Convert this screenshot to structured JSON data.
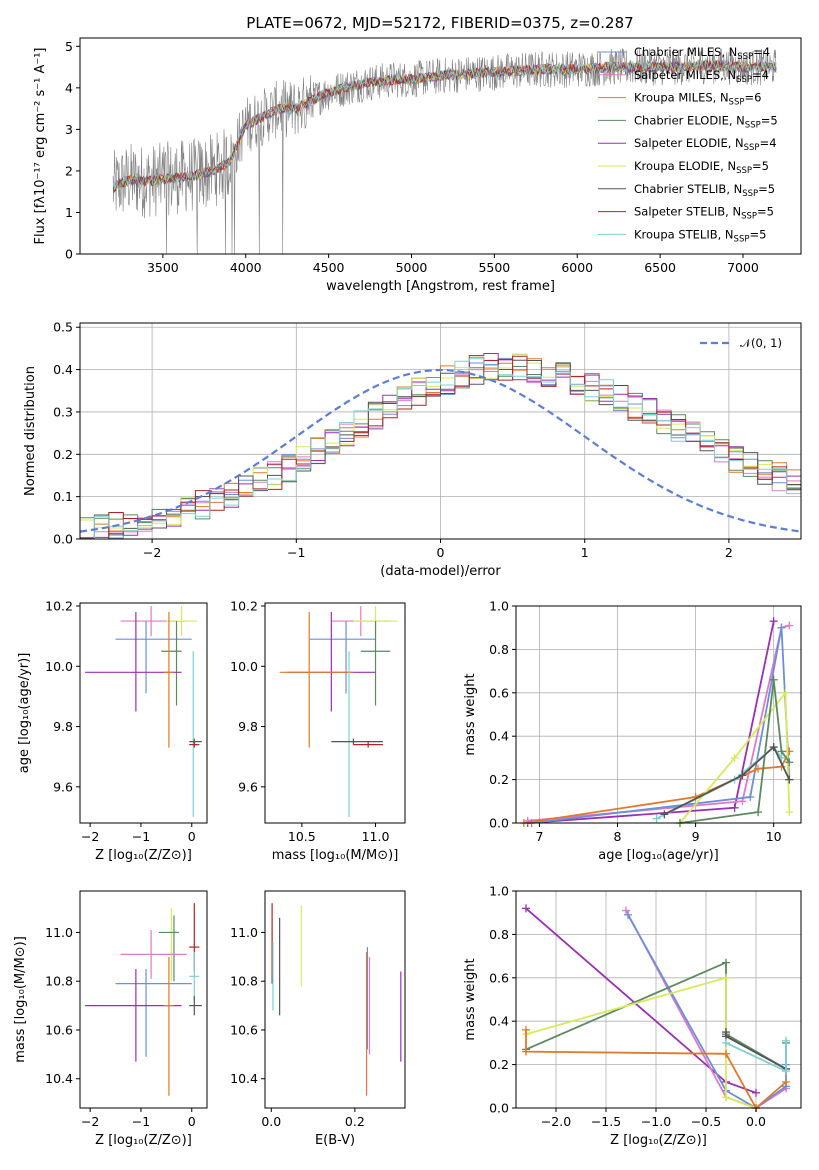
{
  "figure": {
    "title": "PLATE=0672, MJD=52172, FIBERID=0375, z=0.287"
  },
  "colors": {
    "chabrier_miles": "#6b8fdc",
    "salpeter_miles": "#e07ac6",
    "kroupa_miles": "#e07a2a",
    "chabrier_elodie": "#5a8a5e",
    "salpeter_elodie": "#9a2fb6",
    "kroupa_elodie": "#d6ea5a",
    "chabrier_stelib": "#555555",
    "salpeter_stelib": "#b22222",
    "kroupa_stelib": "#7fd0d0",
    "normal_curve": "#5b7fd6",
    "observed": "#808080"
  },
  "chart_data": [
    {
      "id": "spectrum",
      "type": "line",
      "title": "PLATE=0672, MJD=52172, FIBERID=0375, z=0.287",
      "xlabel": "wavelength [Angstrom, rest frame]",
      "ylabel": "Flux [fλ10⁻¹⁷ erg cm⁻² s⁻¹ A⁻¹]",
      "xlim": [
        3000,
        7350
      ],
      "ylim": [
        0,
        5.2
      ],
      "xticks": [
        3500,
        4000,
        4500,
        5000,
        5500,
        6000,
        6500,
        7000
      ],
      "yticks": [
        0,
        1,
        2,
        3,
        4,
        5
      ],
      "legend_position": "top-right",
      "grid": false,
      "model_continuum": {
        "x": [
          3200,
          3300,
          3400,
          3500,
          3600,
          3700,
          3800,
          3900,
          4000,
          4100,
          4200,
          4300,
          4400,
          4500,
          4600,
          4700,
          4800,
          4900,
          5000,
          5200,
          5400,
          5600,
          5800,
          6000,
          6200,
          6400,
          6600,
          6800,
          7000,
          7200
        ],
        "y": [
          1.6,
          1.8,
          1.75,
          1.8,
          1.85,
          1.9,
          2.0,
          2.2,
          3.1,
          3.3,
          3.5,
          3.5,
          3.7,
          3.9,
          4.0,
          4.1,
          4.15,
          4.2,
          4.2,
          4.3,
          4.35,
          4.4,
          4.45,
          4.45,
          4.5,
          4.5,
          4.5,
          4.55,
          4.5,
          4.5
        ]
      },
      "series": [
        {
          "name": "Chabrier MILES, N_SSP=4",
          "label_main": "Chabrier MILES, N",
          "label_sub": "SSP",
          "label_tail": "=4",
          "color_key": "chabrier_miles"
        },
        {
          "name": "Salpeter MILES, N_SSP=4",
          "label_main": "Salpeter MILES, N",
          "label_sub": "SSP",
          "label_tail": "=4",
          "color_key": "salpeter_miles"
        },
        {
          "name": "Kroupa MILES, N_SSP=6",
          "label_main": "Kroupa MILES, N",
          "label_sub": "SSP",
          "label_tail": "=6",
          "color_key": "kroupa_miles"
        },
        {
          "name": "Chabrier ELODIE, N_SSP=5",
          "label_main": "Chabrier ELODIE, N",
          "label_sub": "SSP",
          "label_tail": "=5",
          "color_key": "chabrier_elodie"
        },
        {
          "name": "Salpeter ELODIE, N_SSP=4",
          "label_main": "Salpeter ELODIE, N",
          "label_sub": "SSP",
          "label_tail": "=4",
          "color_key": "salpeter_elodie"
        },
        {
          "name": "Kroupa ELODIE, N_SSP=5",
          "label_main": "Kroupa ELODIE, N",
          "label_sub": "SSP",
          "label_tail": "=5",
          "color_key": "kroupa_elodie"
        },
        {
          "name": "Chabrier STELIB, N_SSP=5",
          "label_main": "Chabrier STELIB, N",
          "label_sub": "SSP",
          "label_tail": "=5",
          "color_key": "chabrier_stelib"
        },
        {
          "name": "Salpeter STELIB, N_SSP=5",
          "label_main": "Salpeter STELIB, N",
          "label_sub": "SSP",
          "label_tail": "=5",
          "color_key": "salpeter_stelib"
        },
        {
          "name": "Kroupa STELIB, N_SSP=5",
          "label_main": "Kroupa STELIB, N",
          "label_sub": "SSP",
          "label_tail": "=5",
          "color_key": "kroupa_stelib"
        }
      ]
    },
    {
      "id": "residuals",
      "type": "line",
      "xlabel": "(data-model)/error",
      "ylabel": "Normed distribution",
      "xlim": [
        -2.5,
        2.5
      ],
      "ylim": [
        0,
        0.51
      ],
      "xticks": [
        -2,
        -1,
        0,
        1,
        2
      ],
      "yticks": [
        0.0,
        0.1,
        0.2,
        0.3,
        0.4,
        0.5
      ],
      "grid": true,
      "legend_position": "top-right",
      "normal_curve_label": "𝒩(0, 1)",
      "bin_width": 0.1,
      "bin_start": -2.5,
      "reference_histogram": [
        0.018,
        0.022,
        0.028,
        0.035,
        0.04,
        0.05,
        0.06,
        0.07,
        0.08,
        0.09,
        0.105,
        0.12,
        0.135,
        0.15,
        0.17,
        0.19,
        0.21,
        0.23,
        0.25,
        0.27,
        0.29,
        0.31,
        0.33,
        0.345,
        0.36,
        0.375,
        0.39,
        0.4,
        0.405,
        0.41,
        0.405,
        0.4,
        0.395,
        0.385,
        0.375,
        0.36,
        0.345,
        0.33,
        0.315,
        0.3,
        0.28,
        0.26,
        0.245,
        0.225,
        0.21,
        0.19,
        0.175,
        0.16,
        0.145,
        0.13,
        0.115
      ],
      "series_count": 9
    },
    {
      "id": "age_vs_Z",
      "type": "scatter",
      "xlabel": "Z [log₁₀(Z/Z⊙)]",
      "ylabel": "age  [log₁₀(age/yr)]",
      "xlim": [
        -2.2,
        0.3
      ],
      "ylim": [
        9.48,
        10.21
      ],
      "xticks": [
        -2,
        -1,
        0
      ],
      "yticks": [
        9.6,
        9.8,
        10.0,
        10.2
      ],
      "points": [
        {
          "color_key": "salpeter_miles",
          "x": -0.8,
          "xerr": [
            0.6,
            0.7
          ],
          "y": 10.15,
          "yerr": [
            0.05,
            0.05
          ]
        },
        {
          "color_key": "chabrier_miles",
          "x": -0.9,
          "xerr": [
            0.6,
            0.9
          ],
          "y": 10.09,
          "yerr": [
            0.18,
            0.06
          ]
        },
        {
          "color_key": "kroupa_elodie",
          "x": -0.2,
          "xerr": [
            0.3,
            0.3
          ],
          "y": 10.15,
          "yerr": [
            0.05,
            0.05
          ]
        },
        {
          "color_key": "chabrier_elodie",
          "x": -0.3,
          "xerr": [
            0.3,
            0.1
          ],
          "y": 10.05,
          "yerr": [
            0.18,
            0.1
          ]
        },
        {
          "color_key": "salpeter_elodie",
          "x": -1.1,
          "xerr": [
            1.0,
            0.9
          ],
          "y": 9.98,
          "yerr": [
            0.13,
            0.2
          ]
        },
        {
          "color_key": "kroupa_miles",
          "x": -0.45,
          "xerr": [
            0.1,
            0.1
          ],
          "y": 9.98,
          "yerr": [
            0.25,
            0.2
          ]
        },
        {
          "color_key": "kroupa_stelib",
          "x": 0.03,
          "xerr": [
            0.05,
            0.05
          ],
          "y": 9.75,
          "yerr": [
            0.25,
            0.3
          ]
        },
        {
          "color_key": "chabrier_stelib",
          "x": 0.05,
          "xerr": [
            0.1,
            0.15
          ],
          "y": 9.75,
          "yerr": [
            0.01,
            0.01
          ]
        },
        {
          "color_key": "salpeter_stelib",
          "x": 0.05,
          "xerr": [
            0.1,
            0.1
          ],
          "y": 9.74,
          "yerr": [
            0.01,
            0.01
          ]
        }
      ]
    },
    {
      "id": "age_vs_mass",
      "type": "scatter",
      "xlabel": "mass [log₁₀(M/M⊙)]",
      "xlim": [
        10.25,
        11.2
      ],
      "ylim": [
        9.48,
        10.21
      ],
      "xticks": [
        10.5,
        11.0
      ],
      "yticks": [
        9.6,
        9.8,
        10.0,
        10.2
      ],
      "points": [
        {
          "color_key": "salpeter_miles",
          "x": 10.9,
          "xerr": [
            0.2,
            0.2
          ],
          "y": 10.15,
          "yerr": [
            0.05,
            0.05
          ]
        },
        {
          "color_key": "chabrier_miles",
          "x": 10.8,
          "xerr": [
            0.25,
            0.2
          ],
          "y": 10.09,
          "yerr": [
            0.18,
            0.06
          ]
        },
        {
          "color_key": "kroupa_elodie",
          "x": 11.0,
          "xerr": [
            0.15,
            0.15
          ],
          "y": 10.15,
          "yerr": [
            0.05,
            0.05
          ]
        },
        {
          "color_key": "chabrier_elodie",
          "x": 11.0,
          "xerr": [
            0.1,
            0.1
          ],
          "y": 10.05,
          "yerr": [
            0.18,
            0.1
          ]
        },
        {
          "color_key": "salpeter_elodie",
          "x": 10.7,
          "xerr": [
            0.3,
            0.3
          ],
          "y": 9.98,
          "yerr": [
            0.13,
            0.2
          ]
        },
        {
          "color_key": "kroupa_miles",
          "x": 10.55,
          "xerr": [
            0.2,
            0.3
          ],
          "y": 9.98,
          "yerr": [
            0.25,
            0.2
          ]
        },
        {
          "color_key": "kroupa_stelib",
          "x": 10.82,
          "xerr": [
            0.05,
            0.05
          ],
          "y": 9.75,
          "yerr": [
            0.25,
            0.3
          ]
        },
        {
          "color_key": "chabrier_stelib",
          "x": 10.85,
          "xerr": [
            0.15,
            0.2
          ],
          "y": 9.75,
          "yerr": [
            0.01,
            0.01
          ]
        },
        {
          "color_key": "salpeter_stelib",
          "x": 10.95,
          "xerr": [
            0.1,
            0.1
          ],
          "y": 9.74,
          "yerr": [
            0.01,
            0.01
          ]
        }
      ]
    },
    {
      "id": "weight_vs_age",
      "type": "line",
      "xlabel": "age  [log₁₀(age/yr)]",
      "ylabel": "mass weight",
      "xlim": [
        6.7,
        10.35
      ],
      "ylim": [
        0,
        1.0
      ],
      "xticks": [
        7,
        8,
        9,
        10
      ],
      "yticks": [
        0.0,
        0.2,
        0.4,
        0.6,
        0.8,
        1.0
      ],
      "grid": true,
      "series": [
        {
          "color_key": "salpeter_elodie",
          "x": [
            6.85,
            9.5,
            10.0
          ],
          "y": [
            0.0,
            0.07,
            0.93
          ]
        },
        {
          "color_key": "salpeter_miles",
          "x": [
            6.85,
            9.6,
            10.1,
            10.2
          ],
          "y": [
            0.01,
            0.1,
            0.9,
            0.91
          ]
        },
        {
          "color_key": "chabrier_miles",
          "x": [
            6.9,
            9.7,
            10.1,
            10.2
          ],
          "y": [
            0.0,
            0.12,
            0.9,
            0.2
          ]
        },
        {
          "color_key": "kroupa_miles",
          "x": [
            6.8,
            9.0,
            9.8,
            10.1,
            10.2
          ],
          "y": [
            0.0,
            0.12,
            0.25,
            0.26,
            0.33
          ]
        },
        {
          "color_key": "kroupa_elodie",
          "x": [
            8.8,
            9.5,
            10.15,
            10.2
          ],
          "y": [
            0.0,
            0.3,
            0.6,
            0.05
          ]
        },
        {
          "color_key": "chabrier_elodie",
          "x": [
            8.8,
            9.8,
            10.0,
            10.1,
            10.2
          ],
          "y": [
            0.0,
            0.05,
            0.66,
            0.33,
            0.28
          ]
        },
        {
          "color_key": "kroupa_stelib",
          "x": [
            8.5,
            9.5,
            10.0,
            10.1
          ],
          "y": [
            0.02,
            0.2,
            0.35,
            0.3
          ]
        },
        {
          "color_key": "chabrier_stelib",
          "x": [
            8.6,
            9.6,
            10.0,
            10.2
          ],
          "y": [
            0.04,
            0.22,
            0.35,
            0.2
          ]
        }
      ]
    },
    {
      "id": "mass_vs_Z",
      "type": "scatter",
      "xlabel": "Z [log₁₀(Z/Z⊙)]",
      "ylabel": "mass [log₁₀(M/M⊙)]",
      "xlim": [
        -2.2,
        0.3
      ],
      "ylim": [
        10.28,
        11.17
      ],
      "xticks": [
        -2,
        -1,
        0
      ],
      "yticks": [
        10.4,
        10.6,
        10.8,
        11.0
      ],
      "points": [
        {
          "color_key": "salpeter_stelib",
          "x": 0.05,
          "xerr": [
            0.1,
            0.1
          ],
          "y": 10.94,
          "yerr": [
            0.1,
            0.18
          ]
        },
        {
          "color_key": "kroupa_elodie",
          "x": -0.4,
          "xerr": [
            0.1,
            0.1
          ],
          "y": 11.0,
          "yerr": [
            0.2,
            0.1
          ]
        },
        {
          "color_key": "chabrier_elodie",
          "x": -0.35,
          "xerr": [
            0.3,
            0.1
          ],
          "y": 11.0,
          "yerr": [
            0.2,
            0.07
          ]
        },
        {
          "color_key": "salpeter_miles",
          "x": -0.8,
          "xerr": [
            0.6,
            0.7
          ],
          "y": 10.91,
          "yerr": [
            0.1,
            0.1
          ]
        },
        {
          "color_key": "kroupa_stelib",
          "x": 0.05,
          "xerr": [
            0.1,
            0.1
          ],
          "y": 10.82,
          "yerr": [
            0.1,
            0.1
          ]
        },
        {
          "color_key": "chabrier_miles",
          "x": -0.9,
          "xerr": [
            0.6,
            0.9
          ],
          "y": 10.79,
          "yerr": [
            0.3,
            0.06
          ]
        },
        {
          "color_key": "salpeter_elodie",
          "x": -1.1,
          "xerr": [
            1.0,
            0.9
          ],
          "y": 10.7,
          "yerr": [
            0.23,
            0.15
          ]
        },
        {
          "color_key": "kroupa_miles",
          "x": -0.45,
          "xerr": [
            0.1,
            0.1
          ],
          "y": 10.7,
          "yerr": [
            0.37,
            0.2
          ]
        },
        {
          "color_key": "chabrier_stelib",
          "x": 0.05,
          "xerr": [
            0.1,
            0.15
          ],
          "y": 10.7,
          "yerr": [
            0.04,
            0.04
          ]
        }
      ]
    },
    {
      "id": "mass_vs_ebv",
      "type": "scatter",
      "xlabel": "E(B-V)",
      "xlim": [
        -0.015,
        0.32
      ],
      "ylim": [
        10.28,
        11.17
      ],
      "xticks": [
        0.0,
        0.2
      ],
      "yticks": [
        10.4,
        10.6,
        10.8,
        11.0
      ],
      "points": [
        {
          "color_key": "salpeter_stelib",
          "x": 0.002,
          "y": 10.94,
          "yerr": [
            0.15,
            0.18
          ]
        },
        {
          "color_key": "kroupa_stelib",
          "x": 0.004,
          "y": 10.82,
          "yerr": [
            0.14,
            0.14
          ]
        },
        {
          "color_key": "chabrier_stelib",
          "x": 0.02,
          "y": 10.86,
          "yerr": [
            0.2,
            0.2
          ]
        },
        {
          "color_key": "kroupa_elodie",
          "x": 0.072,
          "y": 10.94,
          "yerr": [
            0.16,
            0.17
          ]
        },
        {
          "color_key": "chabrier_miles",
          "x": 0.23,
          "y": 10.8,
          "yerr": [
            0.28,
            0.14
          ]
        },
        {
          "color_key": "kroupa_miles",
          "x": 0.228,
          "y": 10.7,
          "yerr": [
            0.37,
            0.22
          ]
        },
        {
          "color_key": "salpeter_miles",
          "x": 0.235,
          "y": 10.7,
          "yerr": [
            0.2,
            0.2
          ]
        },
        {
          "color_key": "salpeter_elodie",
          "x": 0.31,
          "y": 10.65,
          "yerr": [
            0.18,
            0.19
          ]
        }
      ]
    },
    {
      "id": "weight_vs_Z",
      "type": "line",
      "xlabel": "Z [log₁₀(Z/Z⊙)]",
      "ylabel": "mass weight",
      "xlim": [
        -2.4,
        0.45
      ],
      "ylim": [
        0,
        1.0
      ],
      "xticks": [
        -2.0,
        -1.5,
        -1.0,
        -0.5,
        0.0
      ],
      "yticks": [
        0.0,
        0.2,
        0.4,
        0.6,
        0.8,
        1.0
      ],
      "grid": true,
      "series": [
        {
          "color_key": "salpeter_elodie",
          "x": [
            -2.3,
            -0.3,
            0.0
          ],
          "y": [
            0.92,
            0.12,
            0.07
          ]
        },
        {
          "color_key": "salpeter_miles",
          "x": [
            -1.3,
            -0.3,
            0.0,
            0.3
          ],
          "y": [
            0.91,
            0.05,
            0.0,
            0.09
          ]
        },
        {
          "color_key": "chabrier_miles",
          "x": [
            -1.28,
            -0.3,
            0.0,
            0.3,
            0.3
          ],
          "y": [
            0.89,
            0.08,
            0.0,
            0.1,
            0.2
          ]
        },
        {
          "color_key": "chabrier_elodie",
          "x": [
            -2.3,
            -0.3,
            -0.3,
            0.3,
            0.3
          ],
          "y": [
            0.27,
            0.67,
            0.34,
            0.18,
            0.3
          ]
        },
        {
          "color_key": "kroupa_elodie",
          "x": [
            -2.3,
            -0.3,
            -0.3,
            0.0
          ],
          "y": [
            0.34,
            0.6,
            0.05,
            0.0
          ]
        },
        {
          "color_key": "kroupa_miles",
          "x": [
            -2.3,
            -2.3,
            -0.3,
            0.0,
            0.3
          ],
          "y": [
            0.36,
            0.26,
            0.25,
            0.0,
            0.12
          ]
        },
        {
          "color_key": "chabrier_stelib",
          "x": [
            -0.3,
            -0.3,
            0.3
          ],
          "y": [
            0.35,
            0.33,
            0.18
          ]
        },
        {
          "color_key": "kroupa_stelib",
          "x": [
            -0.3,
            0.3,
            0.3
          ],
          "y": [
            0.3,
            0.17,
            0.31
          ]
        }
      ]
    }
  ]
}
